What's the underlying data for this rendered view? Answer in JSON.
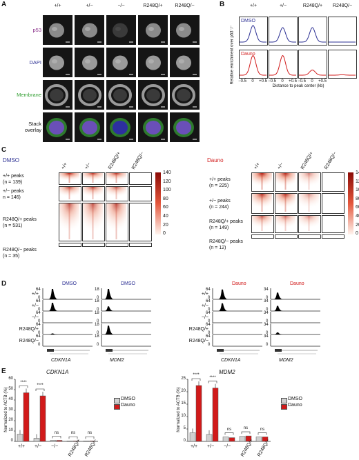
{
  "panels": {
    "a": "A",
    "b": "B",
    "c": "C",
    "d": "D",
    "e": "E"
  },
  "genotypes": [
    "+/+",
    "+/−",
    "−/−",
    "R248Q/+",
    "R248Q/−"
  ],
  "panelA": {
    "rows": [
      "p53",
      "DAPI",
      "Membrane",
      "Stack\noverlay"
    ],
    "row_colors": [
      "#8a2f8a",
      "#2b2f93",
      "#35a035",
      "#111111"
    ]
  },
  "panelB": {
    "columns": [
      "+/+",
      "+/−",
      "R248Q/+",
      "R248Q/−"
    ],
    "conditions": [
      {
        "name": "DMSO",
        "color": "#2b2f93"
      },
      {
        "name": "Dauno",
        "color": "#d11a1a"
      }
    ],
    "ylabel": "Relative enrichment over p53⁻/⁻",
    "xlabel": "Distance to peak center (kb)",
    "xticks": [
      "−0.5",
      "0",
      "+0.5"
    ],
    "chart_data": {
      "type": "line",
      "x_range_kb": [
        -0.5,
        0.5
      ],
      "series": [
        {
          "name": "DMSO",
          "peaks": [
            0.8,
            0.7,
            0.7,
            0.0
          ]
        },
        {
          "name": "Dauno",
          "peaks": [
            0.95,
            0.95,
            0.25,
            0.02
          ]
        }
      ]
    }
  },
  "panelC": {
    "dmso": {
      "title": "DMSO",
      "columns": [
        "+/+",
        "+/−",
        "R248Q/+",
        "R248Q/−"
      ],
      "groups": [
        {
          "label": "+/+ peaks",
          "n": "(n = 139)"
        },
        {
          "label": "+/− peaks",
          "n": "n = 146)"
        },
        {
          "label": "R248Q/+ peaks",
          "n": "(n = 531)"
        },
        {
          "label": "R248Q/− peaks",
          "n": "(n = 35)"
        }
      ],
      "colorbar": [
        "140",
        "120",
        "100",
        "80",
        "60",
        "40",
        "20",
        "0"
      ]
    },
    "dauno": {
      "title": "Dauno",
      "columns": [
        "+/+",
        "+/−",
        "R248Q/+",
        "R248Q/−"
      ],
      "groups": [
        {
          "label": "+/+ peaks",
          "n": "(n = 225)"
        },
        {
          "label": "+/− peaks",
          "n": "(n = 244)"
        },
        {
          "label": "R248Q/+ peaks",
          "n": "(n = 149)"
        },
        {
          "label": "R248Q/− peaks",
          "n": "(n = 12)"
        }
      ],
      "colorbar": [
        "140",
        "120",
        "100",
        "80",
        "60",
        "40",
        "20",
        "0"
      ]
    }
  },
  "panelD": {
    "rows": [
      "+/+",
      "+/−",
      "−/−",
      "R248Q/+",
      "R248Q/−"
    ],
    "tracks": [
      {
        "condition": "DMSO",
        "gene": "CDKN1A",
        "scale": [
          "64",
          "0",
          "64",
          "0",
          "64",
          "0",
          "64",
          "0",
          "64",
          "0"
        ],
        "peaks": [
          1.0,
          0.8,
          0.0,
          0.1,
          0.0
        ]
      },
      {
        "condition": "DMSO",
        "gene": "MDM2",
        "scale": [
          "18",
          "0",
          "18",
          "0",
          "18",
          "0",
          "18",
          "0",
          "18",
          "0"
        ],
        "peaks": [
          1.0,
          0.45,
          0.0,
          0.85,
          0.0
        ]
      },
      {
        "condition": "Dauno",
        "gene": "CDKN1A",
        "scale": [
          "64",
          "0",
          "64",
          "0",
          "64",
          "0",
          "64",
          "0",
          "64",
          "0"
        ],
        "peaks": [
          0.95,
          0.75,
          0.0,
          0.0,
          0.0
        ]
      },
      {
        "condition": "Dauno",
        "gene": "MDM2",
        "scale": [
          "34",
          "0",
          "34",
          "0",
          "34",
          "0",
          "34",
          "0",
          "34",
          "0"
        ],
        "peaks": [
          0.65,
          0.5,
          0.0,
          0.2,
          0.0
        ]
      }
    ]
  },
  "panelE": {
    "ylabel": "Normalized to ACTB (%)",
    "legend": [
      {
        "name": "DMSO",
        "color": "#d0d0d0"
      },
      {
        "name": "Dauno",
        "color": "#d11a1a"
      }
    ],
    "sig": [
      "****",
      "****",
      "ns",
      "ns",
      "ns"
    ],
    "chart_data": [
      {
        "type": "bar",
        "title": "CDKN1A",
        "categories": [
          "+/+",
          "+/−",
          "−/−",
          "R248Q/+",
          "R248Q/−"
        ],
        "series": [
          {
            "name": "DMSO",
            "values": [
              7,
              3,
              1,
              0.5,
              0.5
            ]
          },
          {
            "name": "Dauno",
            "values": [
              47,
              44,
              1,
              0.5,
              0.5
            ]
          }
        ],
        "ylim": [
          0,
          60
        ],
        "yticks": [
          "0",
          "10",
          "20",
          "30",
          "40",
          "50",
          "60"
        ]
      },
      {
        "type": "bar",
        "title": "MDM2",
        "categories": [
          "+/+",
          "+/−",
          "−/−",
          "R248Q/+",
          "R248Q/−"
        ],
        "series": [
          {
            "name": "DMSO",
            "values": [
              3.5,
              2.8,
              1.8,
              2,
              1.8
            ]
          },
          {
            "name": "Dauno",
            "values": [
              22.5,
              21.5,
              1.5,
              2.2,
              1.8
            ]
          }
        ],
        "ylim": [
          0,
          25
        ],
        "yticks": [
          "0",
          "5",
          "10",
          "15",
          "20",
          "25"
        ]
      }
    ]
  }
}
